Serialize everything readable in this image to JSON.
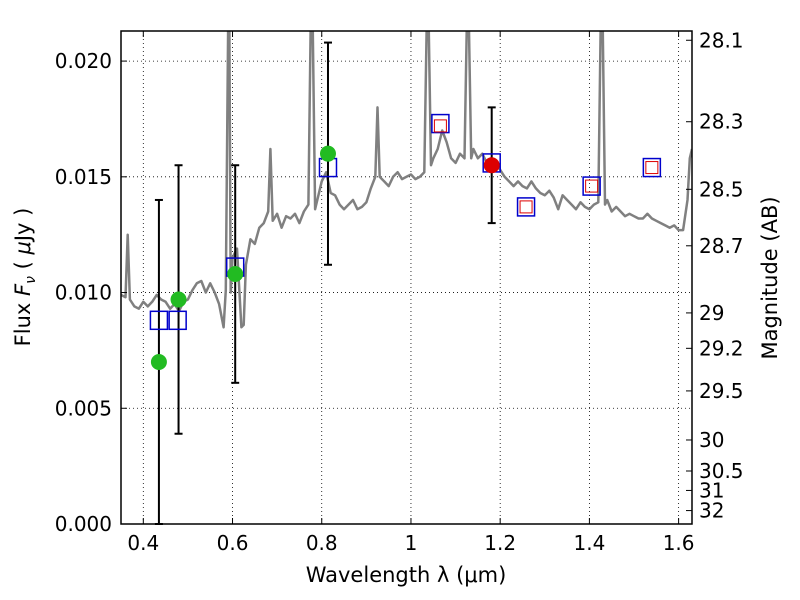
{
  "chart_data": {
    "type": "scatter",
    "xlabel": "Wavelength  λ (μm)",
    "ylabel_parts": [
      "Flux  ",
      "F",
      "ν",
      "  ( ",
      "μ",
      "Jy )"
    ],
    "y2label": "Magnitude (AB)",
    "xlim": [
      0.35,
      1.63
    ],
    "ylim": [
      0.0,
      0.0213
    ],
    "grid": true,
    "x_ticks": [
      0.4,
      0.6,
      0.8,
      1.0,
      1.2,
      1.4,
      1.6
    ],
    "x_tick_labels": [
      "0.4",
      "0.6",
      "0.8",
      "1",
      "1.2",
      "1.4",
      "1.6"
    ],
    "y_ticks": [
      0.0,
      0.005,
      0.01,
      0.015,
      0.02
    ],
    "y_tick_labels": [
      "0.000",
      "0.005",
      "0.010",
      "0.015",
      "0.020"
    ],
    "y2_ticks": [
      {
        "label": "28.1",
        "flux": 0.0209
      },
      {
        "label": "28.3",
        "flux": 0.01738
      },
      {
        "label": "28.5",
        "flux": 0.01446
      },
      {
        "label": "28.7",
        "flux": 0.01202
      },
      {
        "label": "29",
        "flux": 0.00912
      },
      {
        "label": "29.2",
        "flux": 0.00759
      },
      {
        "label": "29.5",
        "flux": 0.00575
      },
      {
        "label": "30",
        "flux": 0.00363
      },
      {
        "label": "30.5",
        "flux": 0.00229
      },
      {
        "label": "31",
        "flux": 0.00145
      },
      {
        "label": "32",
        "flux": 0.00058
      }
    ],
    "series": [
      {
        "name": "model-spectrum",
        "kind": "line",
        "color": "#808080",
        "points": [
          [
            0.35,
            0.0099
          ],
          [
            0.36,
            0.0098
          ],
          [
            0.365,
            0.0125
          ],
          [
            0.37,
            0.0097
          ],
          [
            0.38,
            0.0094
          ],
          [
            0.39,
            0.0093
          ],
          [
            0.4,
            0.0096
          ],
          [
            0.41,
            0.0094
          ],
          [
            0.42,
            0.0096
          ],
          [
            0.43,
            0.0099
          ],
          [
            0.44,
            0.0097
          ],
          [
            0.45,
            0.0096
          ],
          [
            0.46,
            0.0093
          ],
          [
            0.47,
            0.0095
          ],
          [
            0.48,
            0.0092
          ],
          [
            0.49,
            0.0096
          ],
          [
            0.5,
            0.0097
          ],
          [
            0.51,
            0.0101
          ],
          [
            0.52,
            0.0104
          ],
          [
            0.53,
            0.0105
          ],
          [
            0.54,
            0.01
          ],
          [
            0.55,
            0.0104
          ],
          [
            0.56,
            0.01
          ],
          [
            0.57,
            0.0095
          ],
          [
            0.58,
            0.0085
          ],
          [
            0.585,
            0.0101
          ],
          [
            0.59,
            0.0213
          ],
          [
            0.593,
            0.0213
          ],
          [
            0.596,
            0.01
          ],
          [
            0.6,
            0.0115
          ],
          [
            0.61,
            0.0119
          ],
          [
            0.62,
            0.0085
          ],
          [
            0.625,
            0.0086
          ],
          [
            0.63,
            0.0112
          ],
          [
            0.64,
            0.0123
          ],
          [
            0.65,
            0.0121
          ],
          [
            0.66,
            0.0128
          ],
          [
            0.67,
            0.013
          ],
          [
            0.68,
            0.0135
          ],
          [
            0.685,
            0.0162
          ],
          [
            0.69,
            0.0131
          ],
          [
            0.7,
            0.0134
          ],
          [
            0.71,
            0.0128
          ],
          [
            0.72,
            0.0133
          ],
          [
            0.73,
            0.0132
          ],
          [
            0.74,
            0.0134
          ],
          [
            0.75,
            0.013
          ],
          [
            0.76,
            0.0135
          ],
          [
            0.77,
            0.0138
          ],
          [
            0.775,
            0.0213
          ],
          [
            0.78,
            0.0213
          ],
          [
            0.785,
            0.0136
          ],
          [
            0.79,
            0.014
          ],
          [
            0.8,
            0.0148
          ],
          [
            0.81,
            0.0152
          ],
          [
            0.82,
            0.0143
          ],
          [
            0.83,
            0.0142
          ],
          [
            0.84,
            0.0138
          ],
          [
            0.85,
            0.0136
          ],
          [
            0.86,
            0.0138
          ],
          [
            0.87,
            0.014
          ],
          [
            0.88,
            0.0136
          ],
          [
            0.89,
            0.0137
          ],
          [
            0.9,
            0.0139
          ],
          [
            0.91,
            0.0145
          ],
          [
            0.92,
            0.015
          ],
          [
            0.925,
            0.018
          ],
          [
            0.93,
            0.015
          ],
          [
            0.94,
            0.0148
          ],
          [
            0.95,
            0.0146
          ],
          [
            0.96,
            0.015
          ],
          [
            0.97,
            0.0152
          ],
          [
            0.98,
            0.0149
          ],
          [
            0.99,
            0.015
          ],
          [
            1.0,
            0.0151
          ],
          [
            1.01,
            0.0149
          ],
          [
            1.02,
            0.015
          ],
          [
            1.03,
            0.0152
          ],
          [
            1.035,
            0.0213
          ],
          [
            1.04,
            0.0213
          ],
          [
            1.045,
            0.0155
          ],
          [
            1.05,
            0.0158
          ],
          [
            1.06,
            0.0162
          ],
          [
            1.07,
            0.017
          ],
          [
            1.08,
            0.0165
          ],
          [
            1.09,
            0.0158
          ],
          [
            1.1,
            0.0156
          ],
          [
            1.11,
            0.016
          ],
          [
            1.12,
            0.0158
          ],
          [
            1.125,
            0.0213
          ],
          [
            1.13,
            0.0213
          ],
          [
            1.135,
            0.0158
          ],
          [
            1.14,
            0.0162
          ],
          [
            1.15,
            0.0158
          ],
          [
            1.16,
            0.016
          ],
          [
            1.17,
            0.0156
          ],
          [
            1.18,
            0.0158
          ],
          [
            1.19,
            0.0157
          ],
          [
            1.2,
            0.0153
          ],
          [
            1.21,
            0.015
          ],
          [
            1.22,
            0.0148
          ],
          [
            1.23,
            0.0146
          ],
          [
            1.24,
            0.0148
          ],
          [
            1.25,
            0.0146
          ],
          [
            1.26,
            0.0145
          ],
          [
            1.27,
            0.0148
          ],
          [
            1.28,
            0.0145
          ],
          [
            1.29,
            0.0143
          ],
          [
            1.3,
            0.0142
          ],
          [
            1.31,
            0.0144
          ],
          [
            1.32,
            0.0141
          ],
          [
            1.33,
            0.0136
          ],
          [
            1.34,
            0.0142
          ],
          [
            1.35,
            0.014
          ],
          [
            1.36,
            0.0138
          ],
          [
            1.37,
            0.0136
          ],
          [
            1.38,
            0.0139
          ],
          [
            1.39,
            0.0137
          ],
          [
            1.4,
            0.0136
          ],
          [
            1.41,
            0.0138
          ],
          [
            1.42,
            0.0139
          ],
          [
            1.425,
            0.0213
          ],
          [
            1.43,
            0.0213
          ],
          [
            1.435,
            0.0138
          ],
          [
            1.44,
            0.014
          ],
          [
            1.45,
            0.0135
          ],
          [
            1.46,
            0.0137
          ],
          [
            1.47,
            0.0135
          ],
          [
            1.48,
            0.0133
          ],
          [
            1.49,
            0.0134
          ],
          [
            1.5,
            0.0133
          ],
          [
            1.51,
            0.0132
          ],
          [
            1.52,
            0.0132
          ],
          [
            1.53,
            0.0134
          ],
          [
            1.54,
            0.0132
          ],
          [
            1.55,
            0.0131
          ],
          [
            1.56,
            0.013
          ],
          [
            1.57,
            0.0129
          ],
          [
            1.58,
            0.0128
          ],
          [
            1.59,
            0.0129
          ],
          [
            1.6,
            0.0127
          ],
          [
            1.61,
            0.0127
          ],
          [
            1.62,
            0.014
          ],
          [
            1.625,
            0.0158
          ],
          [
            1.63,
            0.0162
          ]
        ]
      },
      {
        "name": "model-bandpass-fluxes",
        "kind": "open-square",
        "color": "#0000cc",
        "points": [
          [
            0.435,
            0.0088
          ],
          [
            0.477,
            0.0088
          ],
          [
            0.606,
            0.0111
          ],
          [
            0.814,
            0.0154
          ],
          [
            1.066,
            0.0173
          ],
          [
            1.181,
            0.0156
          ],
          [
            1.258,
            0.0137
          ],
          [
            1.405,
            0.0146
          ],
          [
            1.54,
            0.0154
          ]
        ]
      },
      {
        "name": "observed-detections",
        "kind": "filled-circle",
        "color": "#22bb22",
        "points": [
          [
            0.435,
            0.007
          ],
          [
            0.479,
            0.0097
          ],
          [
            0.606,
            0.0108
          ],
          [
            0.814,
            0.016
          ]
        ],
        "errors": [
          0.007,
          0.0058,
          0.0047,
          0.0048
        ]
      },
      {
        "name": "observed-red",
        "kind": "filled-circle",
        "color": "#dd0000",
        "points": [
          [
            1.181,
            0.0155
          ]
        ],
        "errors": [
          0.0025
        ]
      },
      {
        "name": "observed-red-squares",
        "kind": "small-red-square",
        "color": "#dd0000",
        "points": [
          [
            1.066,
            0.0172
          ],
          [
            1.258,
            0.0137
          ],
          [
            1.405,
            0.0146
          ],
          [
            1.54,
            0.0154
          ]
        ]
      }
    ]
  }
}
